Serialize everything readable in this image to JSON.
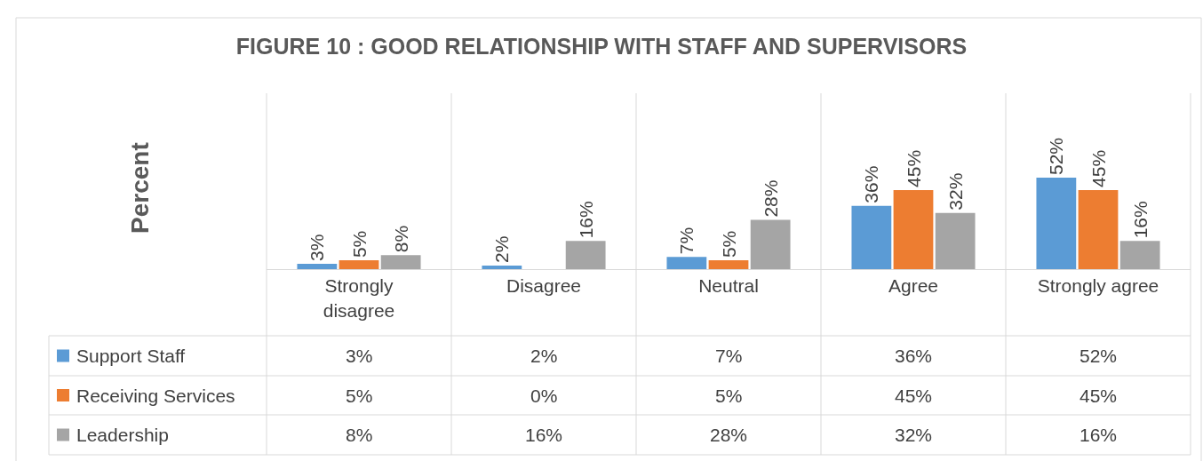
{
  "chart_data": {
    "type": "bar",
    "title": "FIGURE 10 : GOOD RELATIONSHIP WITH STAFF AND SUPERVISORS",
    "ylabel": "Percent",
    "categories": [
      "Strongly disagree",
      "Disagree",
      "Neutral",
      "Agree",
      "Strongly agree"
    ],
    "ylim": [
      0,
      100
    ],
    "legend": "bottom",
    "series": [
      {
        "name": "Support Staff",
        "color": "#5b9bd5",
        "values": [
          3,
          2,
          7,
          36,
          52
        ],
        "value_labels": [
          "3%",
          "2%",
          "7%",
          "36%",
          "52%"
        ]
      },
      {
        "name": "Receiving Services",
        "color": "#ed7d31",
        "values": [
          5,
          0,
          5,
          45,
          45
        ],
        "value_labels": [
          "5%",
          "0%",
          "5%",
          "45%",
          "45%"
        ]
      },
      {
        "name": "Leadership",
        "color": "#a5a5a5",
        "values": [
          8,
          16,
          28,
          32,
          16
        ],
        "value_labels": [
          "8%",
          "16%",
          "28%",
          "32%",
          "16%"
        ]
      }
    ]
  }
}
